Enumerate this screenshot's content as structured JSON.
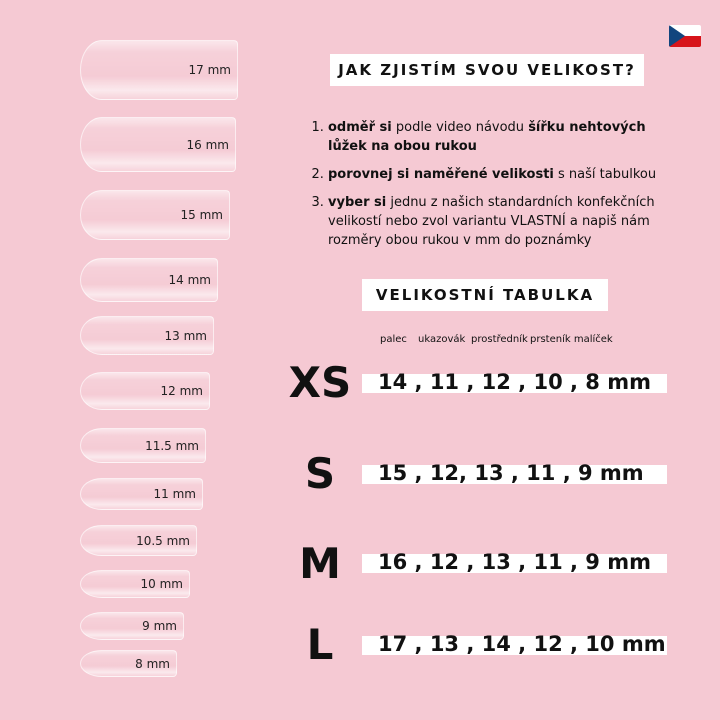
{
  "flag_icon": "czech-flag",
  "nails": [
    "17 mm",
    "16 mm",
    "15 mm",
    "14 mm",
    "13 mm",
    "12 mm",
    "11.5 mm",
    "11 mm",
    "10.5 mm",
    "10 mm",
    "9 mm",
    "8 mm"
  ],
  "title": "JAK ZJISTÍM SVOU VELIKOST?",
  "steps": [
    {
      "b1": "odměř si",
      "t1": " podle video návodu ",
      "b2": "šířku nehtových lůžek na obou rukou",
      "t2": ""
    },
    {
      "b1": "porovnej si naměřené velikosti",
      "t1": " s naší tabulkou",
      "b2": "",
      "t2": ""
    },
    {
      "b1": "vyber si",
      "t1": " jednu z našich standardních konfekčních velikostí nebo zvol variantu VLASTNÍ a napiš nám rozměry obou rukou v mm do poznámky",
      "b2": "",
      "t2": ""
    }
  ],
  "table_title": "VELIKOSTNÍ TABULKA",
  "fingers": [
    "palec",
    "ukazovák",
    "prostředník",
    "prsteník malíček"
  ],
  "sizes": [
    {
      "label": "XS",
      "values": "14 , 11 , 12 , 10 , 8 mm"
    },
    {
      "label": "S",
      "values": "15 , 12, 13 , 11 , 9 mm"
    },
    {
      "label": "M",
      "values": "16 , 12 , 13 , 11 , 9 mm"
    },
    {
      "label": "L",
      "values": "17 , 13 , 14 , 12 , 10 mm"
    }
  ]
}
